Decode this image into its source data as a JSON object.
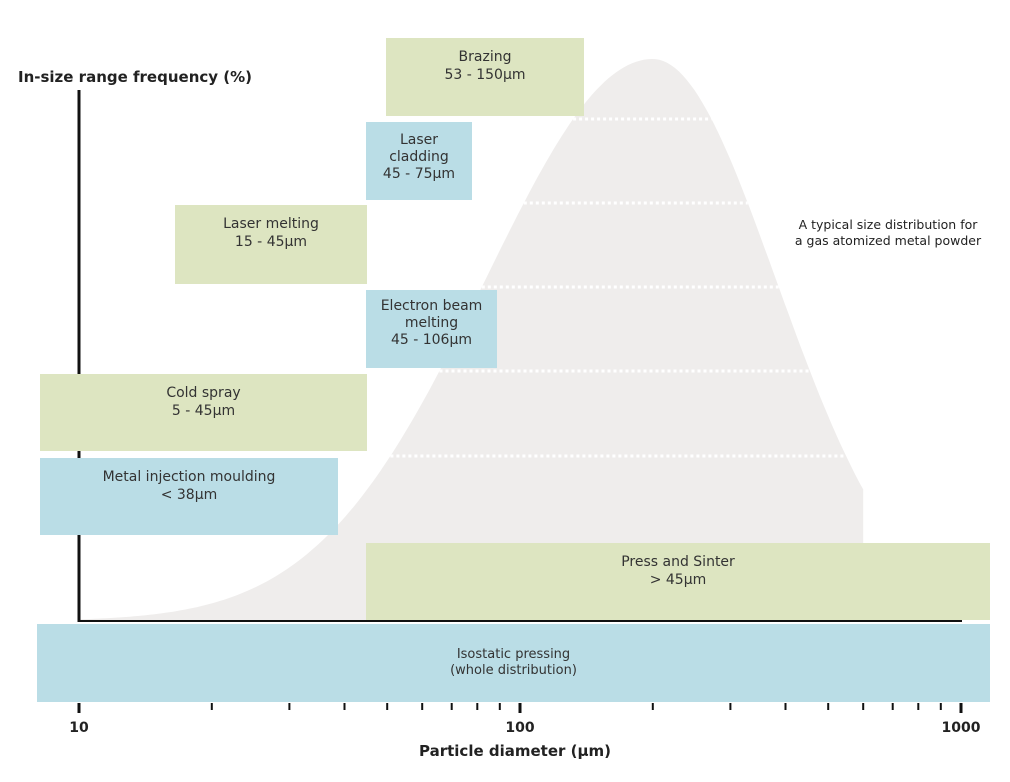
{
  "chart_data": {
    "type": "bar",
    "x_scale": "log",
    "xlim": [
      10,
      1000
    ],
    "xlabel": "Particle diameter (µm)",
    "ylabel": "In-size range frequency (%)",
    "x_ticks": [
      {
        "value": 10,
        "label": "10"
      },
      {
        "value": 100,
        "label": "100"
      },
      {
        "value": 1000,
        "label": "1000"
      }
    ],
    "distribution": {
      "label": "A typical size distribution for a gas atomized metal powder",
      "label_lines": [
        "A typical size distribution for",
        "a gas atomized metal powder"
      ],
      "peak_um": 200,
      "color": "#efedec"
    },
    "ranges": [
      {
        "name": "Brazing",
        "lines": [
          "Brazing",
          "53 - 150µm"
        ],
        "min_um": 53,
        "max_um": 150,
        "color": "#dde5c1"
      },
      {
        "name": "Laser cladding",
        "lines": [
          "Laser",
          "cladding",
          "45 - 75µm"
        ],
        "min_um": 45,
        "max_um": 75,
        "color": "#badde6"
      },
      {
        "name": "Laser melting",
        "lines": [
          "Laser melting",
          "15 - 45µm"
        ],
        "min_um": 15,
        "max_um": 45,
        "color": "#dde5c1"
      },
      {
        "name": "Electron beam melting",
        "lines": [
          "Electron beam",
          "melting",
          "45 - 106µm"
        ],
        "min_um": 45,
        "max_um": 106,
        "color": "#badde6"
      },
      {
        "name": "Cold spray",
        "lines": [
          "Cold spray",
          "5 - 45µm"
        ],
        "min_um": 5,
        "max_um": 45,
        "color": "#dde5c1"
      },
      {
        "name": "Metal injection moulding",
        "lines": [
          "Metal injection moulding",
          "< 38µm"
        ],
        "min_um": null,
        "max_um": 38,
        "color": "#badde6"
      },
      {
        "name": "Press and Sinter",
        "lines": [
          "Press and Sinter",
          "> 45µm"
        ],
        "min_um": 45,
        "max_um": null,
        "color": "#dde5c1"
      },
      {
        "name": "Isostatic pressing",
        "lines": [
          "Isostatic pressing",
          "(whole distribution)"
        ],
        "min_um": null,
        "max_um": null,
        "color": "#badde6"
      }
    ]
  }
}
